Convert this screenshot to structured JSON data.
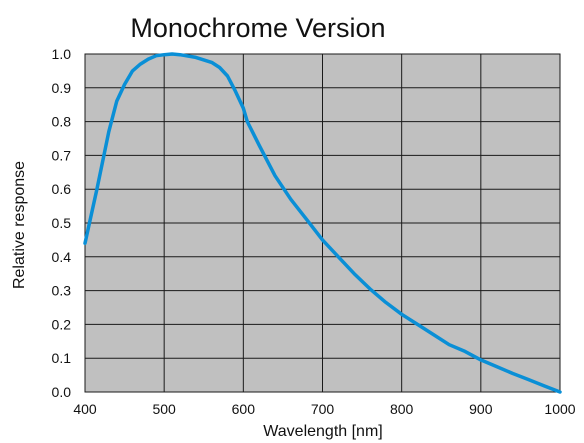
{
  "colors": {
    "plot_background": "#c0c0c0",
    "grid": "#1a1a1a",
    "curve": "#0a8fd6",
    "text": "#111111"
  },
  "chart_data": {
    "type": "line",
    "title": "Monochrome Version",
    "xlabel": "Wavelength [nm]",
    "ylabel": "Relative response",
    "xlim": [
      400,
      1000
    ],
    "ylim": [
      0,
      1.0
    ],
    "grid": true,
    "x_ticks": [
      400,
      500,
      600,
      700,
      800,
      900,
      1000
    ],
    "y_ticks": [
      0.0,
      0.1,
      0.2,
      0.3,
      0.4,
      0.5,
      0.6,
      0.7,
      0.8,
      0.9,
      1.0
    ],
    "x_tick_labels": [
      "400",
      "500",
      "600",
      "700",
      "800",
      "900",
      "1000"
    ],
    "y_tick_labels": [
      "0.0",
      "0.1",
      "0.2",
      "0.3",
      "0.4",
      "0.5",
      "0.6",
      "0.7",
      "0.8",
      "0.9",
      "1.0"
    ],
    "series": [
      {
        "x": [
          400,
          415,
          430,
          440,
          450,
          460,
          470,
          480,
          490,
          500,
          510,
          520,
          540,
          560,
          570,
          580,
          590,
          600,
          605,
          620,
          640,
          660,
          680,
          700,
          720,
          740,
          760,
          780,
          800,
          820,
          840,
          860,
          880,
          900,
          920,
          940,
          960,
          980,
          1000
        ],
        "y": [
          0.44,
          0.6,
          0.77,
          0.86,
          0.91,
          0.95,
          0.97,
          0.985,
          0.995,
          0.998,
          1.0,
          0.998,
          0.99,
          0.975,
          0.96,
          0.935,
          0.89,
          0.84,
          0.8,
          0.73,
          0.64,
          0.57,
          0.51,
          0.45,
          0.4,
          0.35,
          0.305,
          0.265,
          0.23,
          0.2,
          0.17,
          0.14,
          0.12,
          0.095,
          0.075,
          0.055,
          0.037,
          0.018,
          0.0
        ]
      }
    ]
  }
}
